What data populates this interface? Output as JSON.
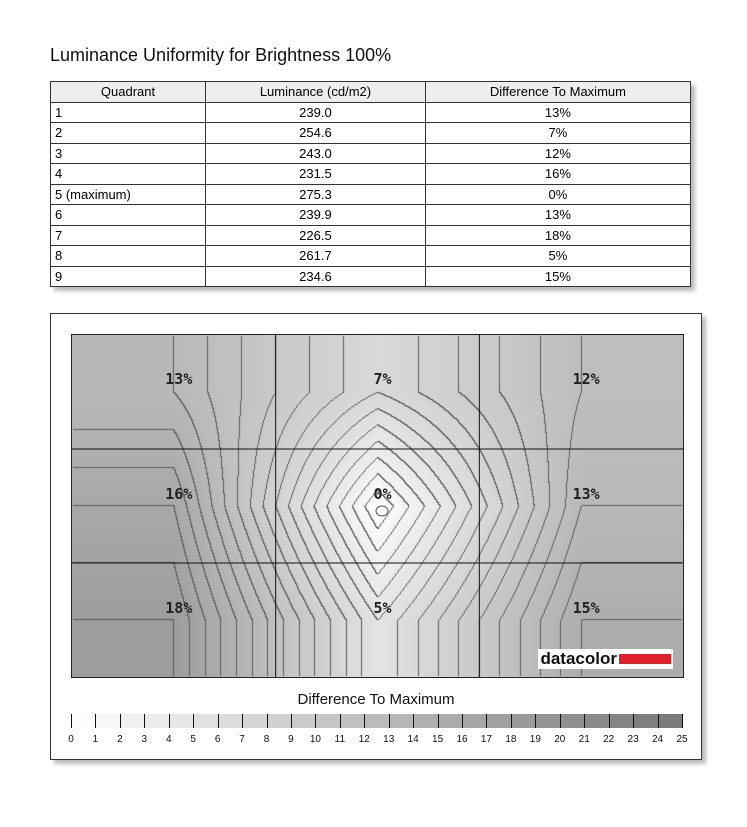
{
  "title": "Luminance Uniformity for Brightness 100%",
  "table": {
    "headers": [
      "Quadrant",
      "Luminance (cd/m2)",
      "Difference To Maximum"
    ],
    "rows": [
      [
        "1",
        "239.0",
        "13%"
      ],
      [
        "2",
        "254.6",
        "7%"
      ],
      [
        "3",
        "243.0",
        "12%"
      ],
      [
        "4",
        "231.5",
        "16%"
      ],
      [
        "5 (maximum)",
        "275.3",
        "0%"
      ],
      [
        "6",
        "239.9",
        "13%"
      ],
      [
        "7",
        "226.5",
        "18%"
      ],
      [
        "8",
        "261.7",
        "5%"
      ],
      [
        "9",
        "234.6",
        "15%"
      ]
    ]
  },
  "chart_data": {
    "type": "heatmap",
    "grid": [
      [
        "13%",
        "7%",
        "12%"
      ],
      [
        "16%",
        "0%",
        "13%"
      ],
      [
        "18%",
        "5%",
        "15%"
      ]
    ],
    "values": [
      [
        13,
        7,
        12
      ],
      [
        16,
        0,
        13
      ],
      [
        18,
        5,
        15
      ]
    ],
    "legend_title": "Difference To Maximum",
    "legend_ticks": [
      "0",
      "1",
      "2",
      "3",
      "4",
      "5",
      "6",
      "7",
      "8",
      "9",
      "10",
      "11",
      "12",
      "13",
      "14",
      "15",
      "16",
      "17",
      "18",
      "19",
      "20",
      "21",
      "22",
      "23",
      "24",
      "25"
    ],
    "scale_range": [
      0,
      25
    ],
    "colors": {
      "min": "#ffffff",
      "max": "#777777"
    }
  },
  "logo": "datacolor"
}
